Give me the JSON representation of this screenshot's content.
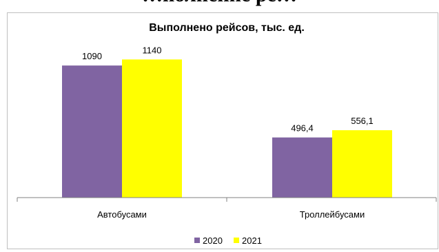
{
  "page_heading_partial": "…полнение ре…",
  "colors": {
    "series_2020": "#8064A2",
    "series_2021": "#FFFF00",
    "axis": "#808080"
  },
  "chart_data": {
    "type": "bar",
    "title": "Выполнено рейсов, тыс. ед.",
    "categories": [
      "Автобусами",
      "Троллейбусами"
    ],
    "series": [
      {
        "name": "2020",
        "values": [
          1090,
          496.4
        ],
        "labels": [
          "1090",
          "496,4"
        ],
        "color": "#8064A2"
      },
      {
        "name": "2021",
        "values": [
          1140,
          556.1
        ],
        "labels": [
          "1140",
          "556,1"
        ],
        "color": "#FFFF00"
      }
    ],
    "ylim": [
      0,
      1250
    ],
    "grid": false,
    "legend": "bottom"
  }
}
